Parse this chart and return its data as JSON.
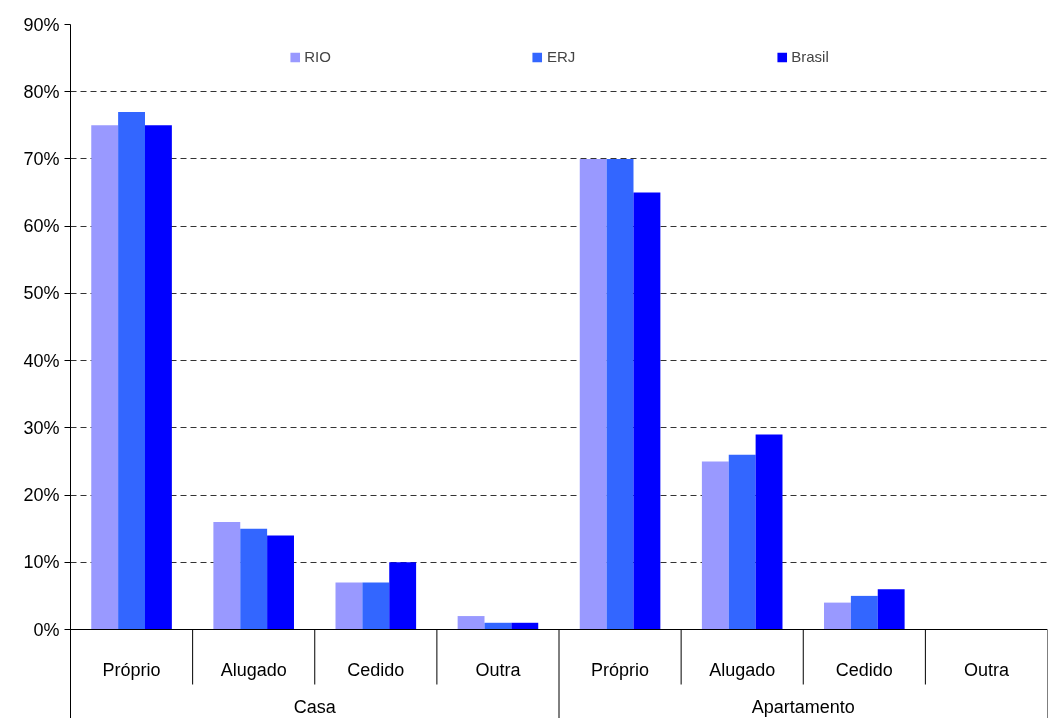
{
  "chart_data": {
    "type": "bar",
    "categories": [
      "Próprio",
      "Alugado",
      "Cedido",
      "Outra",
      "Próprio",
      "Alugado",
      "Cedido",
      "Outra"
    ],
    "annotations": [
      "Casa",
      "Apartamento"
    ],
    "series": [
      {
        "name": "RIO",
        "color": "#9999ff",
        "values": [
          75,
          16,
          7,
          2,
          70,
          25,
          4,
          0
        ]
      },
      {
        "name": "ERJ",
        "color": "#3366ff",
        "values": [
          77,
          15,
          7,
          1,
          70,
          26,
          5,
          0
        ]
      },
      {
        "name": "Brasil",
        "color": "#0000ff",
        "values": [
          75,
          14,
          10,
          1,
          65,
          29,
          6,
          0
        ]
      }
    ],
    "ylim": [
      0,
      90
    ],
    "yticks": [
      {
        "value": 0,
        "label": "0%"
      },
      {
        "value": 10,
        "label": "10%"
      },
      {
        "value": 20,
        "label": "20%"
      },
      {
        "value": 30,
        "label": "30%"
      },
      {
        "value": 40,
        "label": "40%"
      },
      {
        "value": 50,
        "label": "50%"
      },
      {
        "value": 60,
        "label": "60%"
      },
      {
        "value": 70,
        "label": "70%"
      },
      {
        "value": 80,
        "label": "80%"
      },
      {
        "value": 90,
        "label": "90%"
      }
    ],
    "grid": "y",
    "legend": "top"
  }
}
